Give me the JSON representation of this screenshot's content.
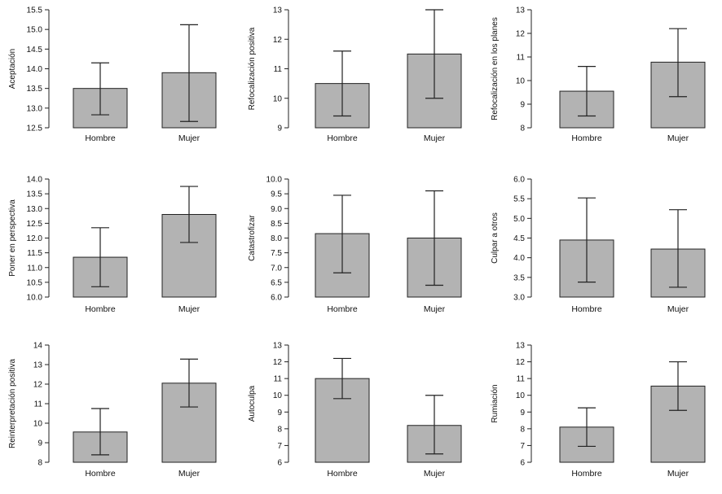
{
  "chart_data": [
    {
      "type": "bar",
      "categories": [
        "Hombre",
        "Mujer"
      ],
      "values": [
        13.5,
        13.9
      ],
      "error_low": [
        12.83,
        12.66
      ],
      "error_high": [
        14.15,
        15.12
      ],
      "ylabel": "Aceptación",
      "ylim": [
        12.5,
        15.5
      ],
      "yticks": [
        "12.5",
        "13.0",
        "13.5",
        "14.0",
        "14.5",
        "15.0",
        "15.5"
      ]
    },
    {
      "type": "bar",
      "categories": [
        "Hombre",
        "Mujer"
      ],
      "values": [
        10.5,
        11.5
      ],
      "error_low": [
        9.4,
        10.0
      ],
      "error_high": [
        11.6,
        13.0
      ],
      "ylabel": "Refocalización positiva",
      "ylim": [
        9,
        13
      ],
      "yticks": [
        "9",
        "10",
        "11",
        "12",
        "13"
      ]
    },
    {
      "type": "bar",
      "categories": [
        "Hombre",
        "Mujer"
      ],
      "values": [
        9.55,
        10.78
      ],
      "error_low": [
        8.5,
        9.32
      ],
      "error_high": [
        10.6,
        12.2
      ],
      "ylabel": "Refocalización en los planes",
      "ylim": [
        8,
        13
      ],
      "yticks": [
        "8",
        "9",
        "10",
        "11",
        "12",
        "13"
      ]
    },
    {
      "type": "bar",
      "categories": [
        "Hombre",
        "Mujer"
      ],
      "values": [
        11.35,
        12.8
      ],
      "error_low": [
        10.35,
        11.85
      ],
      "error_high": [
        12.35,
        13.75
      ],
      "ylabel": "Poner en perspectiva",
      "ylim": [
        10.0,
        14.0
      ],
      "yticks": [
        "10.0",
        "10.5",
        "11.0",
        "11.5",
        "12.0",
        "12.5",
        "13.0",
        "13.5",
        "14.0"
      ]
    },
    {
      "type": "bar",
      "categories": [
        "Hombre",
        "Mujer"
      ],
      "values": [
        8.15,
        8.0
      ],
      "error_low": [
        6.82,
        6.4
      ],
      "error_high": [
        9.45,
        9.6
      ],
      "ylabel": "Catastrofizar",
      "ylim": [
        6.0,
        10.0
      ],
      "yticks": [
        "6.0",
        "6.5",
        "7.0",
        "7.5",
        "8.0",
        "8.5",
        "9.0",
        "9.5",
        "10.0"
      ]
    },
    {
      "type": "bar",
      "categories": [
        "Hombre",
        "Mujer"
      ],
      "values": [
        4.45,
        4.22
      ],
      "error_low": [
        3.38,
        3.25
      ],
      "error_high": [
        5.52,
        5.22
      ],
      "ylabel": "Culpar a otros",
      "ylim": [
        3.0,
        6.0
      ],
      "yticks": [
        "3.0",
        "3.5",
        "4.0",
        "4.5",
        "5.0",
        "5.5",
        "6.0"
      ]
    },
    {
      "type": "bar",
      "categories": [
        "Hombre",
        "Mujer"
      ],
      "values": [
        9.55,
        12.05
      ],
      "error_low": [
        8.38,
        10.83
      ],
      "error_high": [
        10.75,
        13.28
      ],
      "ylabel": "Reinterpretación positiva",
      "ylim": [
        8,
        14
      ],
      "yticks": [
        "8",
        "9",
        "10",
        "11",
        "12",
        "13",
        "14"
      ]
    },
    {
      "type": "bar",
      "categories": [
        "Hombre",
        "Mujer"
      ],
      "values": [
        11.0,
        8.2
      ],
      "error_low": [
        9.8,
        6.5
      ],
      "error_high": [
        12.2,
        10.0
      ],
      "ylabel": "Autoculpa",
      "ylim": [
        6,
        13
      ],
      "yticks": [
        "6",
        "7",
        "8",
        "9",
        "10",
        "11",
        "12",
        "13"
      ]
    },
    {
      "type": "bar",
      "categories": [
        "Hombre",
        "Mujer"
      ],
      "values": [
        8.1,
        10.55
      ],
      "error_low": [
        6.95,
        9.1
      ],
      "error_high": [
        9.25,
        12.0
      ],
      "ylabel": "Rumiación",
      "ylim": [
        6,
        13
      ],
      "yticks": [
        "6",
        "7",
        "8",
        "9",
        "10",
        "11",
        "12",
        "13"
      ]
    }
  ],
  "colors": {
    "bar": "#b3b3b3",
    "stroke": "#222222",
    "background": "#ffffff"
  }
}
